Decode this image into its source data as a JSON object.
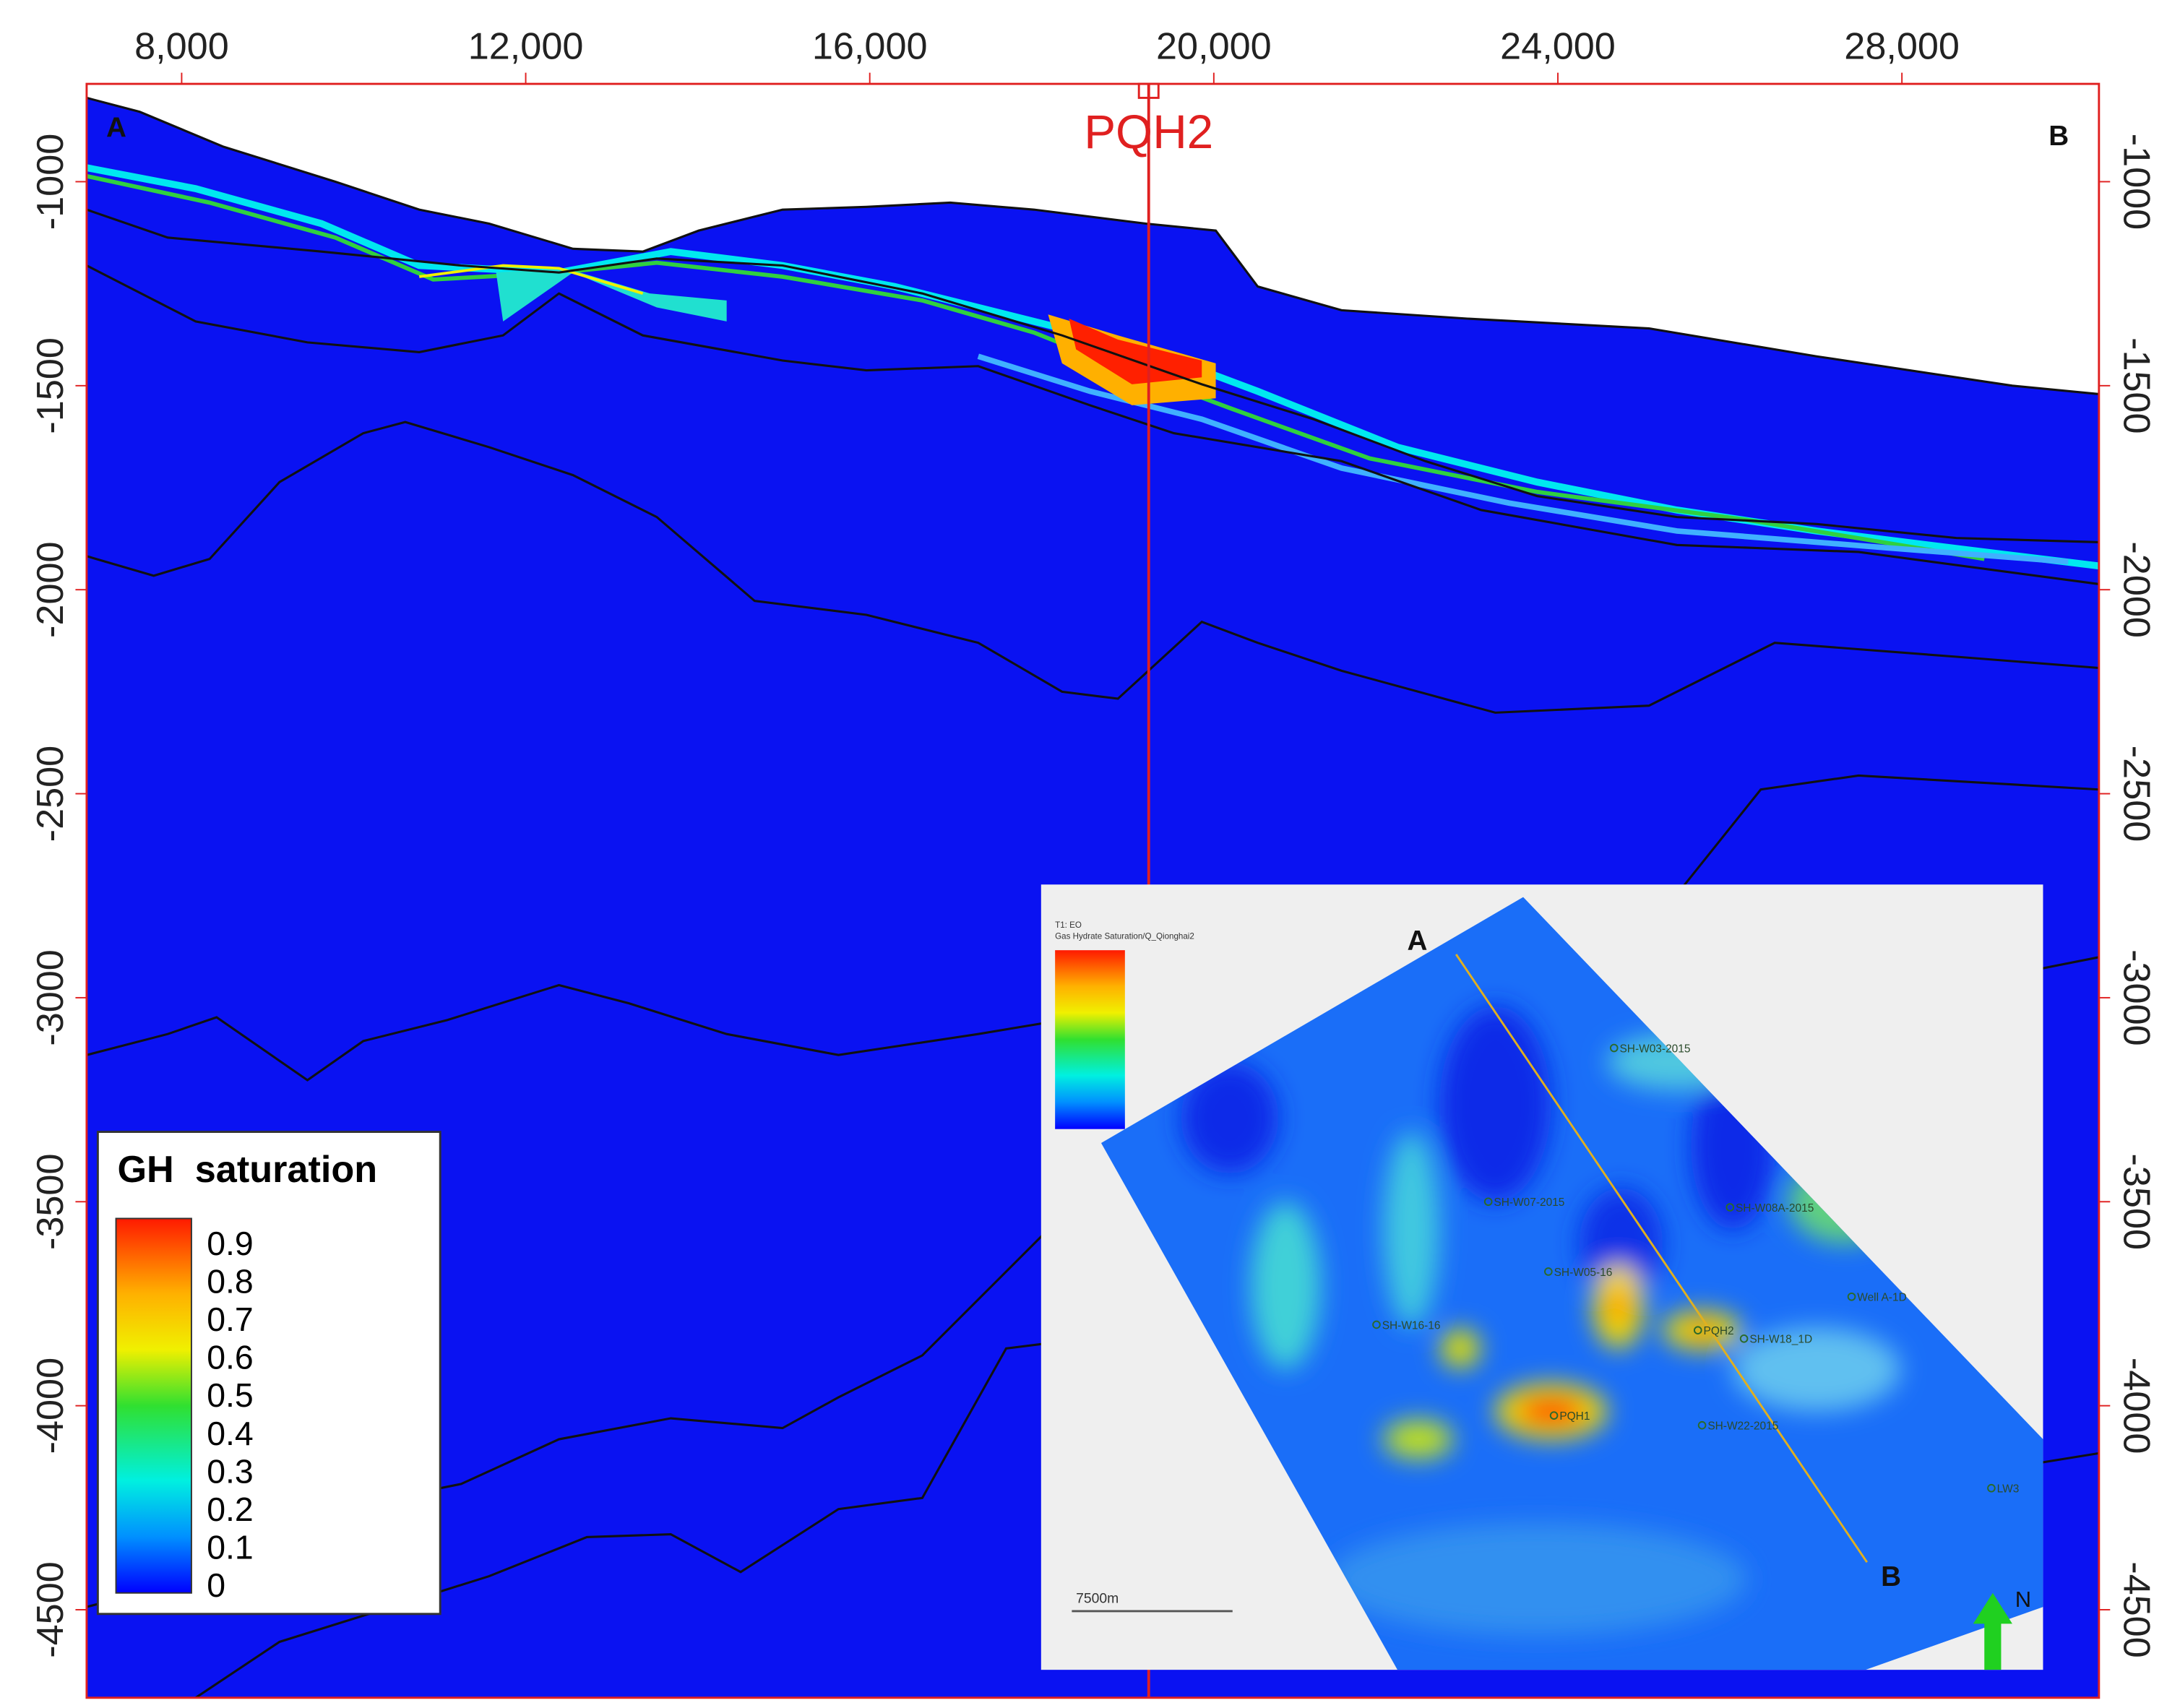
{
  "section": {
    "x_ticks": [
      "8,000",
      "12,000",
      "16,000",
      "20,000",
      "24,000",
      "28,000"
    ],
    "y_ticks": [
      "-1000",
      "-1500",
      "-2000",
      "-2500",
      "-3000",
      "-3500",
      "-4000",
      "-4500"
    ],
    "well": "PQH2",
    "left_label": "A",
    "right_label": "B"
  },
  "legend": {
    "title": "GH  saturation",
    "labels": [
      "0.9",
      "0.8",
      "0.7",
      "0.6",
      "0.5",
      "0.4",
      "0.3",
      "0.2",
      "0.1",
      "0"
    ]
  },
  "inset": {
    "header": [
      "T1: EO",
      "Gas Hydrate Saturation/Q_Qionghai2"
    ],
    "line_start": "A",
    "line_end": "B",
    "north": "N",
    "scale": "7500m",
    "wells": [
      "SH-W03-2015",
      "SH-W07-2015",
      "SH-W08A-2015",
      "SH-W05-16",
      "SH-W16-16",
      "PQH2",
      "SH-W18_1D",
      "Well A-1D",
      "PQH1",
      "SH-W22-2015",
      "LW3"
    ]
  }
}
